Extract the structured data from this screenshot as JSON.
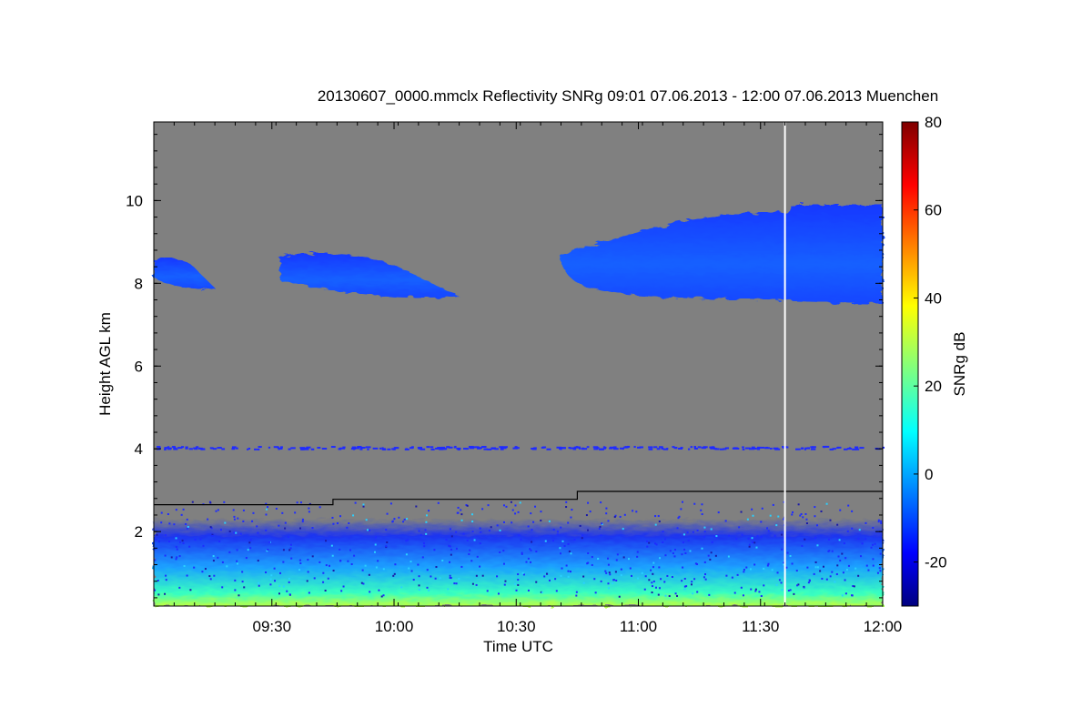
{
  "chart_data": {
    "type": "heatmap",
    "title": "20130607_0000.mmclx Reflectivity SNRg   09:01 07.06.2013 - 12:00 07.06.2013 Muenchen",
    "xlabel": "Time UTC",
    "ylabel": "Height AGL km",
    "x_range": [
      "09:01",
      "12:00"
    ],
    "y_range": [
      0.2,
      11.9
    ],
    "x_ticks": [
      "09:30",
      "10:00",
      "10:30",
      "11:00",
      "11:30",
      "12:00"
    ],
    "y_ticks": [
      2,
      4,
      6,
      8,
      10
    ],
    "colorbar": {
      "label": "SNRg dB",
      "range": [
        -30,
        80
      ],
      "ticks": [
        -20,
        0,
        20,
        40,
        60,
        80
      ],
      "colormap": "jet"
    },
    "background_color": "#808080",
    "features": {
      "cloud_layer": {
        "segments": [
          {
            "start": "09:01",
            "end": "09:16",
            "base_km": 7.8,
            "top_km": 8.7
          },
          {
            "start": "09:32",
            "end": "10:16",
            "base_km": 7.6,
            "top_km": 8.8
          },
          {
            "start": "10:41",
            "end": "12:00",
            "base_km": 7.5,
            "top_km": 9.9
          }
        ]
      },
      "boundary_layer_top_km": 2.3,
      "speckle_line_km": 4.05,
      "black_line": [
        {
          "time": "09:01",
          "height_km": 2.65
        },
        {
          "time": "09:45",
          "height_km": 2.65
        },
        {
          "time": "09:45",
          "height_km": 2.78
        },
        {
          "time": "10:45",
          "height_km": 2.78
        },
        {
          "time": "10:45",
          "height_km": 2.97
        },
        {
          "time": "12:00",
          "height_km": 2.97
        }
      ],
      "white_gap_time": "11:36"
    }
  }
}
